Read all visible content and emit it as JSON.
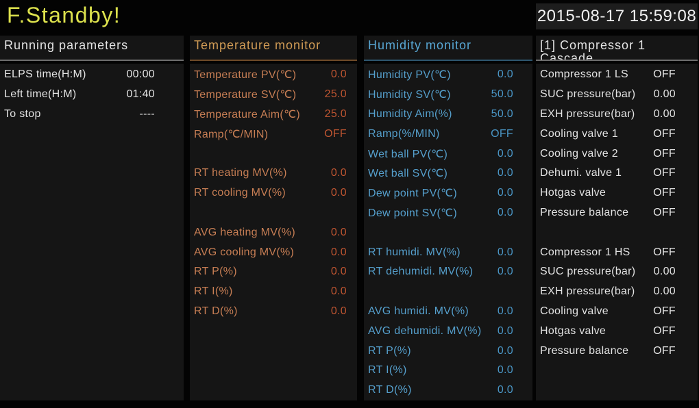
{
  "titlebar": {
    "status": "F.Standby!",
    "datetime": "2015-08-17 15:59:08"
  },
  "colors": {
    "title-green": "#dde24d",
    "panel-bg": "#151515",
    "white-text": "#e3e3e3",
    "temp-header": "#d09b55",
    "temp-label": "#c77e54",
    "temp-value": "#bf5531",
    "humi-header": "#58a7d4",
    "humi-label": "#559fcc",
    "humi-value": "#4a96c6"
  },
  "panels": [
    {
      "title": "Running parameters",
      "rows": [
        {
          "label": "ELPS time(H:M)",
          "value": "00:00"
        },
        {
          "label": "Left time(H:M)",
          "value": "01:40"
        },
        {
          "label": "To stop",
          "value": "----"
        }
      ]
    },
    {
      "title": "Temperature monitor",
      "rows": [
        {
          "label": "Temperature PV(℃)",
          "value": "0.0"
        },
        {
          "label": "Temperature SV(℃)",
          "value": "25.0"
        },
        {
          "label": "Temperature Aim(℃)",
          "value": "25.0"
        },
        {
          "label": "Ramp(℃/MIN)",
          "value": "OFF"
        },
        {
          "spacer": true
        },
        {
          "label": "RT heating MV(%)",
          "value": "0.0"
        },
        {
          "label": "RT cooling MV(%)",
          "value": "0.0"
        },
        {
          "spacer": true
        },
        {
          "label": "AVG heating MV(%)",
          "value": "0.0"
        },
        {
          "label": "AVG cooling MV(%)",
          "value": "0.0"
        },
        {
          "label": "RT P(%)",
          "value": "0.0"
        },
        {
          "label": "RT I(%)",
          "value": "0.0"
        },
        {
          "label": "RT D(%)",
          "value": "0.0"
        }
      ]
    },
    {
      "title": "Humidity monitor",
      "rows": [
        {
          "label": "Humidity PV(℃)",
          "value": "0.0"
        },
        {
          "label": "Humidity SV(℃)",
          "value": "50.0"
        },
        {
          "label": "Humidity Aim(%)",
          "value": "50.0"
        },
        {
          "label": "Ramp(%/MIN)",
          "value": "OFF"
        },
        {
          "label": "Wet ball PV(℃)",
          "value": "0.0"
        },
        {
          "label": "Wet ball SV(℃)",
          "value": "0.0"
        },
        {
          "label": "Dew point PV(℃)",
          "value": "0.0"
        },
        {
          "label": "Dew point SV(℃)",
          "value": "0.0"
        },
        {
          "spacer": true
        },
        {
          "label": "RT humidi. MV(%)",
          "value": "0.0"
        },
        {
          "label": "RT dehumidi. MV(%)",
          "value": "0.0"
        },
        {
          "spacer": true
        },
        {
          "label": "AVG humidi. MV(%)",
          "value": "0.0"
        },
        {
          "label": "AVG dehumidi. MV(%)",
          "value": "0.0"
        },
        {
          "label": "RT P(%)",
          "value": "0.0"
        },
        {
          "label": "RT I(%)",
          "value": "0.0"
        },
        {
          "label": "RT D(%)",
          "value": "0.0"
        }
      ]
    },
    {
      "title": "[1] Compressor 1",
      "title2": "Cascade",
      "rows": [
        {
          "label": "Compressor 1 LS",
          "value": "OFF"
        },
        {
          "label": "SUC pressure(bar)",
          "value": "0.00"
        },
        {
          "label": "EXH pressure(bar)",
          "value": "0.00"
        },
        {
          "label": "Cooling valve 1",
          "value": "OFF"
        },
        {
          "label": "Cooling valve 2",
          "value": "OFF"
        },
        {
          "label": "Dehumi. valve 1",
          "value": "OFF"
        },
        {
          "label": "Hotgas valve",
          "value": "OFF"
        },
        {
          "label": "Pressure balance",
          "value": "OFF"
        },
        {
          "spacer": true
        },
        {
          "label": "Compressor 1 HS",
          "value": "OFF"
        },
        {
          "label": "SUC pressure(bar)",
          "value": "0.00"
        },
        {
          "label": "EXH pressure(bar)",
          "value": "0.00"
        },
        {
          "label": "Cooling valve",
          "value": "OFF"
        },
        {
          "label": "Hotgas valve",
          "value": "OFF"
        },
        {
          "label": "Pressure balance",
          "value": "OFF"
        }
      ]
    }
  ]
}
